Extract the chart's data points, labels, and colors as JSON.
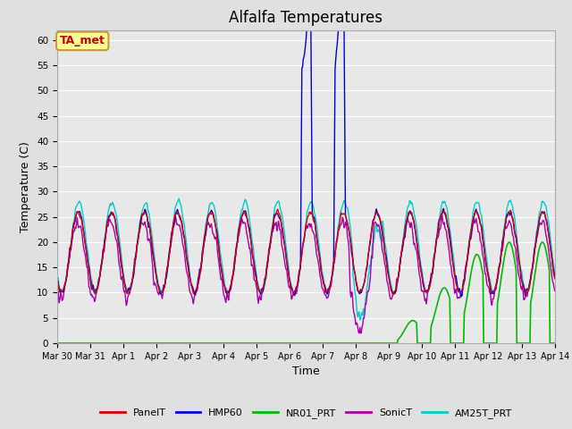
{
  "title": "Alfalfa Temperatures",
  "xlabel": "Time",
  "ylabel": "Temperature (C)",
  "ylim": [
    0,
    62
  ],
  "yticks": [
    0,
    5,
    10,
    15,
    20,
    25,
    30,
    35,
    40,
    45,
    50,
    55,
    60
  ],
  "background_color": "#e0e0e0",
  "plot_bg_color": "#e8e8e8",
  "series": {
    "PanelT": {
      "color": "#dd0000",
      "lw": 1.0
    },
    "HMP60": {
      "color": "#0000dd",
      "lw": 1.0
    },
    "NR01_PRT": {
      "color": "#00bb00",
      "lw": 1.2
    },
    "SonicT": {
      "color": "#aa00aa",
      "lw": 1.0
    },
    "AM25T_PRT": {
      "color": "#00cccc",
      "lw": 1.0
    }
  },
  "annotation": {
    "text": "TA_met",
    "fontsize": 9,
    "facecolor": "#ffff99",
    "edgecolor": "#cc9933",
    "textcolor": "#cc0000"
  },
  "legend_fontsize": 8,
  "title_fontsize": 12,
  "tick_fontsize": 7
}
